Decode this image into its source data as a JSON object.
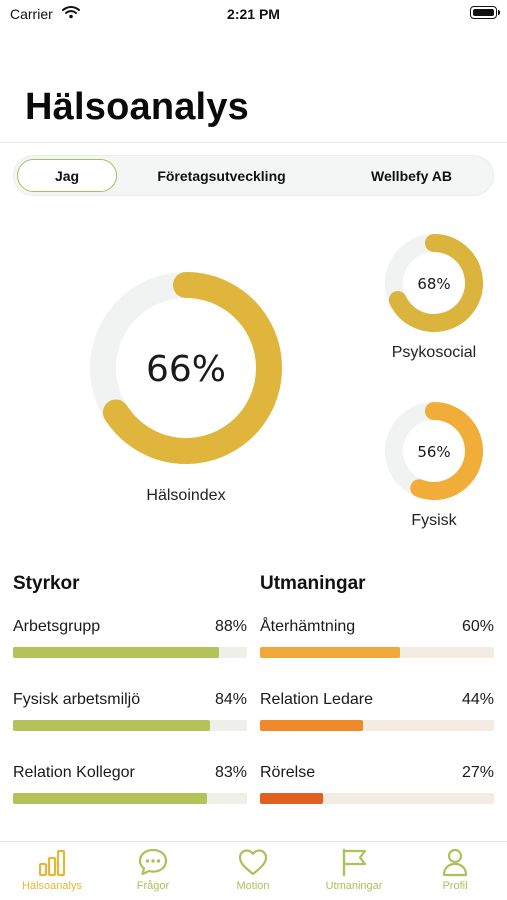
{
  "status_bar": {
    "carrier": "Carrier",
    "time": "2:21 PM"
  },
  "header": {
    "title": "Hälsoanalys"
  },
  "segments": [
    {
      "label": "Jag",
      "selected": true
    },
    {
      "label": "Företagsutveckling",
      "selected": false
    },
    {
      "label": "Wellbefy AB",
      "selected": false
    }
  ],
  "gauges": {
    "main": {
      "value_text": "66%",
      "label": "Hälsoindex",
      "fraction": 0.66,
      "color": "#e0b53b"
    },
    "psykosocial": {
      "value_text": "68%",
      "label": "Psykosocial",
      "fraction": 0.68,
      "color": "#dbb43e"
    },
    "fysisk": {
      "value_text": "56%",
      "label": "Fysisk",
      "fraction": 0.56,
      "color": "#f0ad37"
    }
  },
  "strengths": {
    "title": "Styrkor",
    "items": [
      {
        "label": "Arbetsgrupp",
        "value_text": "88%",
        "value": 88,
        "color": "#b4c25a"
      },
      {
        "label": "Fysisk arbetsmiljö",
        "value_text": "84%",
        "value": 84,
        "color": "#b4c25a"
      },
      {
        "label": "Relation Kollegor",
        "value_text": "83%",
        "value": 83,
        "color": "#b4c25a"
      }
    ]
  },
  "challenges": {
    "title": "Utmaningar",
    "items": [
      {
        "label": "Återhämtning",
        "value_text": "60%",
        "value": 60,
        "color": "#f0a83a"
      },
      {
        "label": "Relation Ledare",
        "value_text": "44%",
        "value": 44,
        "color": "#ee8a2a"
      },
      {
        "label": "Rörelse",
        "value_text": "27%",
        "value": 27,
        "color": "#e35f1f"
      }
    ]
  },
  "colors": {
    "strength_track": "#eeefe9",
    "challenge_track": "#f4ebe3",
    "accent_green": "#a9c35a",
    "active_tab": "#e4b73a"
  },
  "tabs": [
    {
      "label": "Hälsoanalys",
      "icon": "bar-chart-icon",
      "active": true
    },
    {
      "label": "Frågor",
      "icon": "chat-bubble-icon",
      "active": false
    },
    {
      "label": "Motion",
      "icon": "heart-icon",
      "active": false
    },
    {
      "label": "Utmaningar",
      "icon": "flag-icon",
      "active": false
    },
    {
      "label": "Profil",
      "icon": "person-icon",
      "active": false
    }
  ]
}
